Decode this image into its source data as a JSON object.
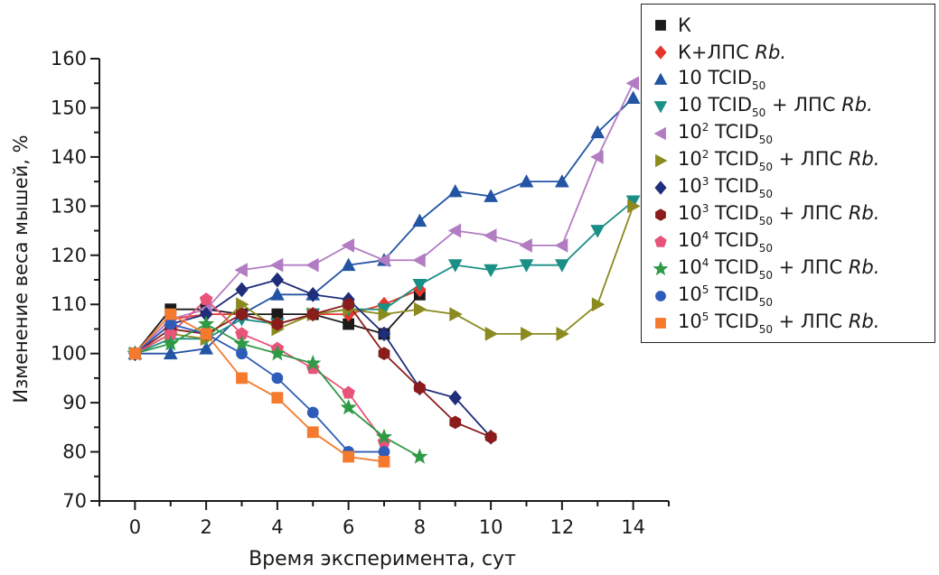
{
  "chart_data": {
    "type": "line",
    "title": "",
    "xlabel": "Время эксперимента, сут",
    "ylabel": "Изменение веса мышей, %",
    "xlim": [
      -1,
      15
    ],
    "ylim": [
      70,
      160
    ],
    "x_ticks": [
      0,
      2,
      4,
      6,
      8,
      10,
      12,
      14
    ],
    "y_ticks": [
      70,
      80,
      90,
      100,
      110,
      120,
      130,
      140,
      150,
      160
    ],
    "grid": false,
    "legend_position": "top-right",
    "series": [
      {
        "name": "К",
        "label": {
          "base": "К",
          "suffix": ""
        },
        "color": "#1a1a1a",
        "marker": "square",
        "x": [
          0,
          1,
          2,
          3,
          4,
          5,
          6,
          7,
          8
        ],
        "y": [
          100,
          109,
          109,
          108,
          108,
          108,
          106,
          104,
          112
        ]
      },
      {
        "name": "К+ЛПС Rb.",
        "label": {
          "base": "К+ЛПС",
          "suffix": "Rb."
        },
        "color": "#e8352b",
        "marker": "diamond",
        "x": [
          0,
          1,
          2,
          3,
          4,
          5,
          6,
          7,
          8
        ],
        "y": [
          100,
          107,
          108,
          108,
          106,
          108,
          108,
          110,
          113
        ]
      },
      {
        "name": "10 TCID50",
        "label": {
          "base": "10 TCID",
          "sub": "50",
          "suffix": ""
        },
        "color": "#2455a4",
        "marker": "triangle-up",
        "x": [
          0,
          1,
          2,
          3,
          4,
          5,
          6,
          7,
          8,
          9,
          10,
          11,
          12,
          13,
          14
        ],
        "y": [
          100,
          100,
          101,
          108,
          112,
          112,
          118,
          119,
          127,
          133,
          132,
          135,
          135,
          145,
          152
        ]
      },
      {
        "name": "10 TCID50 + ЛПС Rb.",
        "label": {
          "base": "10 TCID",
          "sub": "50",
          "mid": " + ЛПС ",
          "suffix": "Rb."
        },
        "color": "#1a8f86",
        "marker": "triangle-down",
        "x": [
          0,
          1,
          2,
          3,
          4,
          5,
          6,
          7,
          8,
          9,
          10,
          11,
          12,
          13,
          14
        ],
        "y": [
          100,
          103,
          103,
          107,
          106,
          108,
          109,
          109,
          114,
          118,
          117,
          118,
          118,
          125,
          131
        ]
      },
      {
        "name": "10² TCID50",
        "label": {
          "base": "10",
          "sup": "2",
          "tail": " TCID",
          "sub": "50",
          "suffix": ""
        },
        "color": "#b27cc2",
        "marker": "triangle-left",
        "x": [
          0,
          1,
          2,
          3,
          4,
          5,
          6,
          7,
          8,
          9,
          10,
          11,
          12,
          13,
          14
        ],
        "y": [
          100,
          107,
          109,
          117,
          118,
          118,
          122,
          119,
          119,
          125,
          124,
          122,
          122,
          140,
          155
        ]
      },
      {
        "name": "10² TCID50 + ЛПС Rb.",
        "label": {
          "base": "10",
          "sup": "2",
          "tail": " TCID",
          "sub": "50",
          "mid": " + ЛПС ",
          "suffix": "Rb."
        },
        "color": "#8a8a1f",
        "marker": "triangle-right",
        "x": [
          0,
          1,
          2,
          3,
          4,
          5,
          6,
          7,
          8,
          9,
          10,
          11,
          12,
          13,
          14
        ],
        "y": [
          100,
          104,
          103,
          110,
          105,
          108,
          109,
          108,
          109,
          108,
          104,
          104,
          104,
          110,
          130
        ]
      },
      {
        "name": "10³ TCID50",
        "label": {
          "base": "10",
          "sup": "3",
          "tail": " TCID",
          "sub": "50",
          "suffix": ""
        },
        "color": "#1e2e7a",
        "marker": "diamond",
        "x": [
          0,
          1,
          2,
          3,
          4,
          5,
          6,
          7,
          8,
          9,
          10
        ],
        "y": [
          100,
          106,
          108,
          113,
          115,
          112,
          111,
          104,
          93,
          91,
          83
        ]
      },
      {
        "name": "10³ TCID50 + ЛПС Rb.",
        "label": {
          "base": "10",
          "sup": "3",
          "tail": " TCID",
          "sub": "50",
          "mid": " + ЛПС ",
          "suffix": "Rb."
        },
        "color": "#8b1c1c",
        "marker": "hexagon",
        "x": [
          0,
          1,
          2,
          3,
          4,
          5,
          6,
          7,
          8,
          9,
          10
        ],
        "y": [
          100,
          105,
          104,
          108,
          106,
          108,
          110,
          100,
          93,
          86,
          83
        ]
      },
      {
        "name": "10⁴ TCID50",
        "label": {
          "base": "10",
          "sup": "4",
          "tail": " TCID",
          "sub": "50",
          "suffix": ""
        },
        "color": "#e8537a",
        "marker": "pentagon",
        "x": [
          0,
          1,
          2,
          3,
          4,
          5,
          6,
          7
        ],
        "y": [
          100,
          104,
          111,
          104,
          101,
          97,
          92,
          82
        ]
      },
      {
        "name": "10⁴ TCID50 + ЛПС Rb.",
        "label": {
          "base": "10",
          "sup": "4",
          "tail": " TCID",
          "sub": "50",
          "mid": " + ЛПС ",
          "suffix": "Rb."
        },
        "color": "#2f9a45",
        "marker": "star",
        "x": [
          0,
          1,
          2,
          3,
          4,
          5,
          6,
          7,
          8
        ],
        "y": [
          100,
          102,
          106,
          102,
          100,
          98,
          89,
          83,
          79
        ]
      },
      {
        "name": "10⁵ TCID50",
        "label": {
          "base": "10",
          "sup": "5",
          "tail": " TCID",
          "sub": "50",
          "suffix": ""
        },
        "color": "#2e5cb8",
        "marker": "circle",
        "x": [
          0,
          1,
          2,
          3,
          4,
          5,
          6,
          7
        ],
        "y": [
          100,
          106,
          104,
          100,
          95,
          88,
          80,
          80
        ]
      },
      {
        "name": "10⁵ TCID50 + ЛПС Rb.",
        "label": {
          "base": "10",
          "sup": "5",
          "tail": " TCID",
          "sub": "50",
          "mid": " + ЛПС ",
          "suffix": "Rb."
        },
        "color": "#f57a2e",
        "marker": "square",
        "x": [
          0,
          1,
          2,
          3,
          4,
          5,
          6,
          7
        ],
        "y": [
          100,
          108,
          104,
          95,
          91,
          84,
          79,
          78
        ]
      }
    ]
  }
}
